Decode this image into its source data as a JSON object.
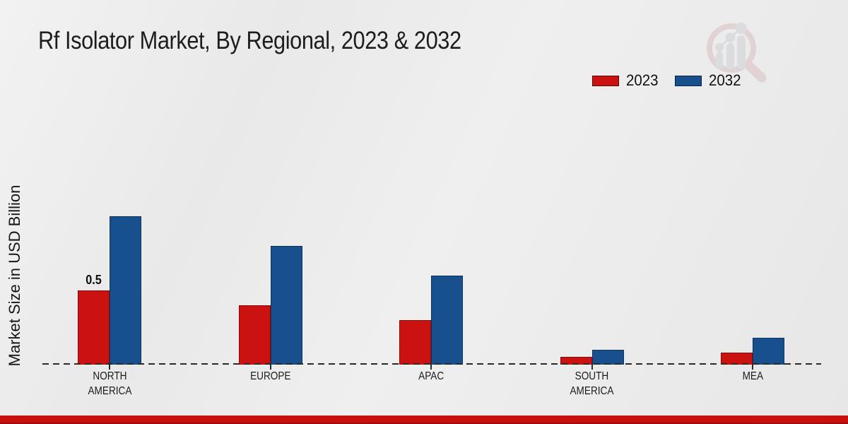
{
  "chart_data": {
    "type": "bar",
    "title": "Rf Isolator Market, By Regional, 2023 & 2032",
    "ylabel": "Market Size in USD Billion",
    "categories": [
      "NORTH AMERICA",
      "EUROPE",
      "APAC",
      "SOUTH AMERICA",
      "MEA"
    ],
    "series": [
      {
        "name": "2023",
        "color": "#cc1111",
        "values": [
          0.5,
          0.4,
          0.3,
          0.05,
          0.08
        ]
      },
      {
        "name": "2032",
        "color": "#17508c",
        "values": [
          1.0,
          0.8,
          0.6,
          0.1,
          0.18
        ]
      }
    ],
    "data_labels": [
      {
        "category_index": 0,
        "series_index": 0,
        "text": "0.5"
      }
    ],
    "ylim": [
      0,
      1.05
    ],
    "grid": false,
    "baseline_style": "dashed",
    "legend_position": "top-right"
  },
  "branding": {
    "watermark_icon": "magnifier-bar-chart-logo",
    "footer_bar_color": "#c9100f"
  },
  "colors": {
    "background": "#ebebeb",
    "baseline": "#2a2a2a",
    "text": "#1c1c1c"
  }
}
